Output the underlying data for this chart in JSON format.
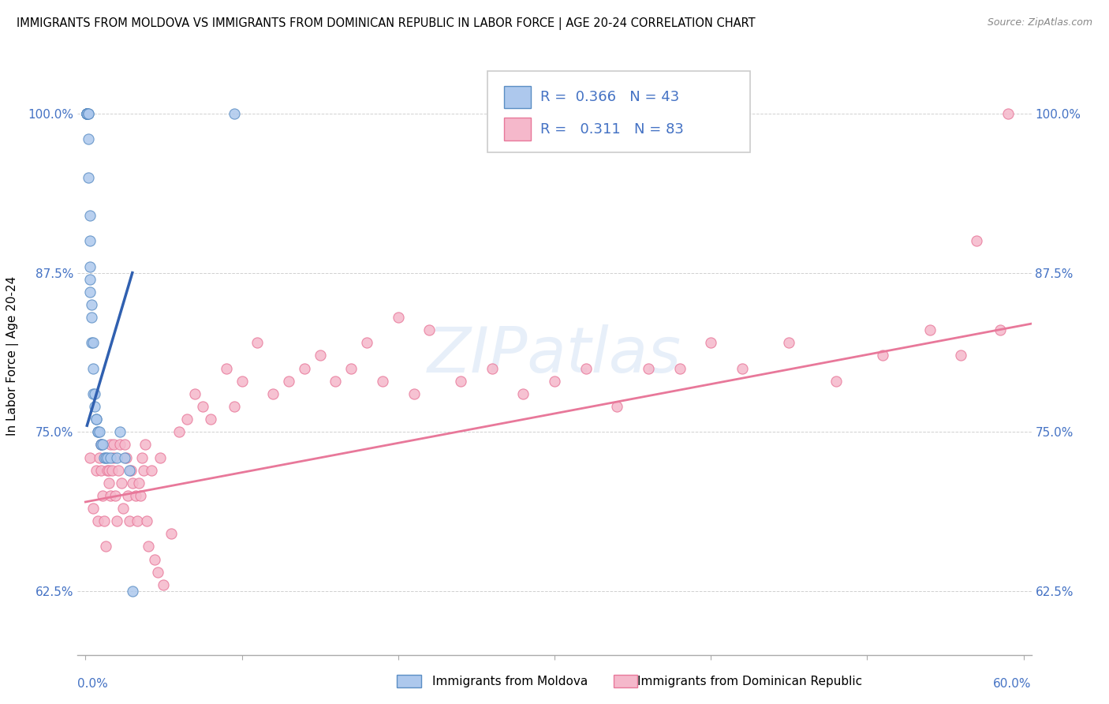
{
  "title": "IMMIGRANTS FROM MOLDOVA VS IMMIGRANTS FROM DOMINICAN REPUBLIC IN LABOR FORCE | AGE 20-24 CORRELATION CHART",
  "source": "Source: ZipAtlas.com",
  "ylabel_label": "In Labor Force | Age 20-24",
  "yticks": [
    0.625,
    0.75,
    0.875,
    1.0
  ],
  "ytick_labels": [
    "62.5%",
    "75.0%",
    "87.5%",
    "100.0%"
  ],
  "xticks": [
    0.0,
    0.1,
    0.2,
    0.3,
    0.4,
    0.5,
    0.6
  ],
  "xlim": [
    -0.005,
    0.605
  ],
  "ylim": [
    0.575,
    1.045
  ],
  "moldova_color": "#adc8ed",
  "moldova_edge_color": "#5b8ec4",
  "dominican_color": "#f5b8cb",
  "dominican_edge_color": "#e8789a",
  "moldova_line_color": "#3060b0",
  "dominican_line_color": "#e8789a",
  "r_moldova": 0.366,
  "n_moldova": 43,
  "r_dominican": 0.311,
  "n_dominican": 83,
  "legend_label_moldova": "Immigrants from Moldova",
  "legend_label_dominican": "Immigrants from Dominican Republic",
  "moldova_x": [
    0.001,
    0.001,
    0.001,
    0.001,
    0.001,
    0.001,
    0.001,
    0.001,
    0.002,
    0.002,
    0.002,
    0.002,
    0.003,
    0.003,
    0.003,
    0.003,
    0.003,
    0.004,
    0.004,
    0.004,
    0.005,
    0.005,
    0.005,
    0.006,
    0.006,
    0.007,
    0.007,
    0.008,
    0.008,
    0.009,
    0.01,
    0.01,
    0.011,
    0.012,
    0.013,
    0.014,
    0.016,
    0.02,
    0.022,
    0.025,
    0.028,
    0.03,
    0.095
  ],
  "moldova_y": [
    1.0,
    1.0,
    1.0,
    1.0,
    1.0,
    1.0,
    1.0,
    1.0,
    1.0,
    1.0,
    0.98,
    0.95,
    0.92,
    0.9,
    0.88,
    0.87,
    0.86,
    0.85,
    0.84,
    0.82,
    0.82,
    0.8,
    0.78,
    0.78,
    0.77,
    0.76,
    0.76,
    0.75,
    0.75,
    0.75,
    0.74,
    0.74,
    0.74,
    0.73,
    0.73,
    0.73,
    0.73,
    0.73,
    0.75,
    0.73,
    0.72,
    0.625,
    1.0
  ],
  "dominican_x": [
    0.003,
    0.005,
    0.007,
    0.008,
    0.009,
    0.01,
    0.01,
    0.011,
    0.012,
    0.013,
    0.014,
    0.015,
    0.015,
    0.016,
    0.016,
    0.017,
    0.018,
    0.018,
    0.019,
    0.02,
    0.021,
    0.022,
    0.023,
    0.024,
    0.025,
    0.026,
    0.027,
    0.028,
    0.029,
    0.03,
    0.032,
    0.033,
    0.034,
    0.035,
    0.036,
    0.037,
    0.038,
    0.039,
    0.04,
    0.042,
    0.044,
    0.046,
    0.048,
    0.05,
    0.055,
    0.06,
    0.065,
    0.07,
    0.075,
    0.08,
    0.09,
    0.095,
    0.1,
    0.11,
    0.12,
    0.13,
    0.14,
    0.15,
    0.16,
    0.17,
    0.18,
    0.19,
    0.2,
    0.21,
    0.22,
    0.24,
    0.26,
    0.28,
    0.3,
    0.32,
    0.34,
    0.36,
    0.38,
    0.4,
    0.42,
    0.45,
    0.48,
    0.51,
    0.54,
    0.56,
    0.57,
    0.585,
    0.59
  ],
  "dominican_y": [
    0.73,
    0.69,
    0.72,
    0.68,
    0.73,
    0.74,
    0.72,
    0.7,
    0.68,
    0.66,
    0.72,
    0.71,
    0.72,
    0.7,
    0.74,
    0.72,
    0.73,
    0.74,
    0.7,
    0.68,
    0.72,
    0.74,
    0.71,
    0.69,
    0.74,
    0.73,
    0.7,
    0.68,
    0.72,
    0.71,
    0.7,
    0.68,
    0.71,
    0.7,
    0.73,
    0.72,
    0.74,
    0.68,
    0.66,
    0.72,
    0.65,
    0.64,
    0.73,
    0.63,
    0.67,
    0.75,
    0.76,
    0.78,
    0.77,
    0.76,
    0.8,
    0.77,
    0.79,
    0.82,
    0.78,
    0.79,
    0.8,
    0.81,
    0.79,
    0.8,
    0.82,
    0.79,
    0.84,
    0.78,
    0.83,
    0.79,
    0.8,
    0.78,
    0.79,
    0.8,
    0.77,
    0.8,
    0.8,
    0.82,
    0.8,
    0.82,
    0.79,
    0.81,
    0.83,
    0.81,
    0.9,
    0.83,
    1.0
  ],
  "moldova_trendline_x": [
    0.001,
    0.03
  ],
  "moldova_trendline_y": [
    0.755,
    0.875
  ],
  "dominican_trendline_x": [
    0.0,
    0.605
  ],
  "dominican_trendline_y": [
    0.695,
    0.835
  ]
}
